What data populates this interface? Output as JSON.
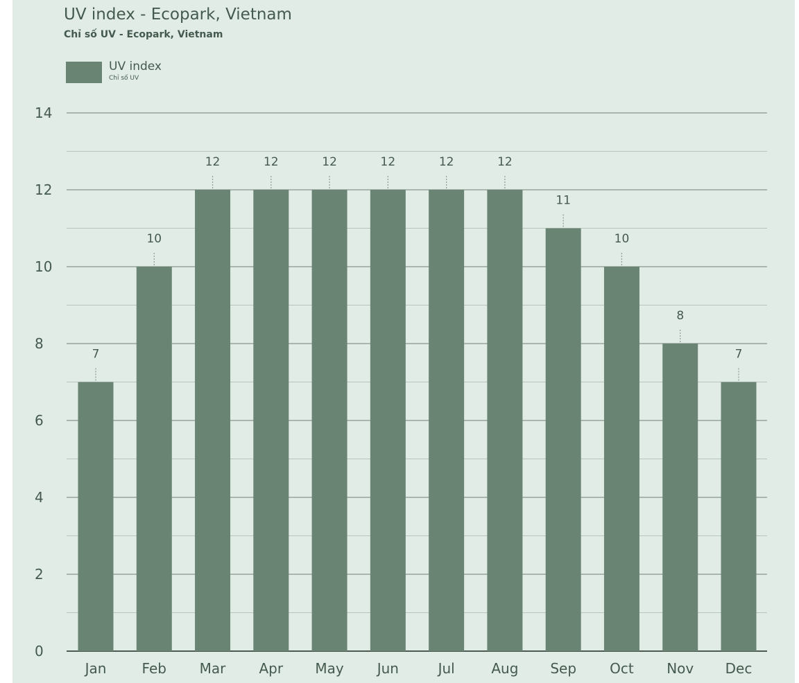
{
  "chart_data": {
    "type": "bar",
    "title": "UV index - Ecopark, Vietnam",
    "subtitle": "Chỉ số UV - Ecopark, Vietnam",
    "legend": {
      "label": "UV index",
      "sublabel": "Chỉ số UV",
      "placement": "top-left"
    },
    "categories": [
      "Jan",
      "Feb",
      "Mar",
      "Apr",
      "May",
      "Jun",
      "Jul",
      "Aug",
      "Sep",
      "Oct",
      "Nov",
      "Dec"
    ],
    "series": [
      {
        "name": "UV index",
        "values": [
          7,
          10,
          12,
          12,
          12,
          12,
          12,
          12,
          11,
          10,
          8,
          7
        ],
        "labels": [
          "7",
          "10",
          "12",
          "12",
          "12",
          "12",
          "12",
          "12",
          "11",
          "10",
          "8",
          "7"
        ],
        "color": "#6a8474"
      }
    ],
    "ylim": [
      0,
      14
    ],
    "yticks": [
      0,
      2,
      4,
      6,
      8,
      10,
      12,
      14
    ],
    "grid": true,
    "colors": {
      "background": "#e2ece6",
      "bar": "#6a8474",
      "text": "#445a4f",
      "grid_major": "#6f7f76",
      "grid_minor": "#b6c4bb"
    }
  }
}
